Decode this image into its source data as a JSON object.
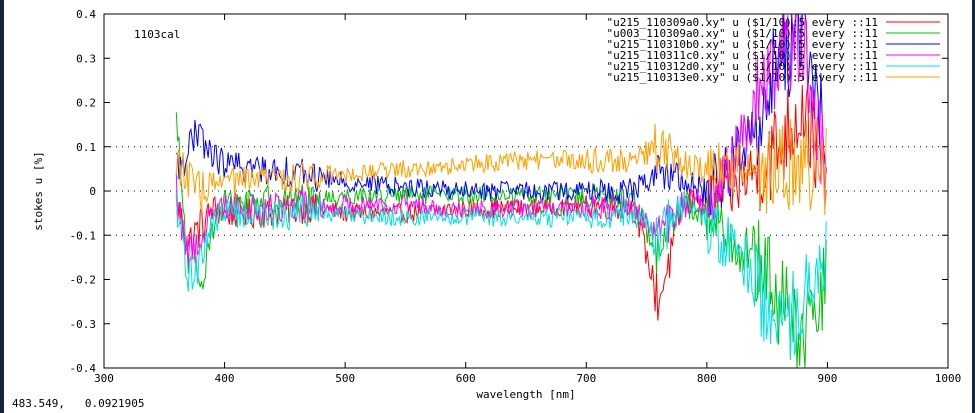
{
  "chart_data": {
    "type": "line",
    "title": "",
    "xlabel": "wavelength [nm]",
    "ylabel": "stokes u [%]",
    "xlim": [
      300,
      1000
    ],
    "ylim": [
      -0.4,
      0.4
    ],
    "x_ticks": [
      "300",
      "400",
      "500",
      "600",
      "700",
      "800",
      "900",
      "1000"
    ],
    "y_ticks": [
      "-0.4",
      "-0.3",
      "-0.2",
      "-0.1",
      "0",
      "0.1",
      "0.2",
      "0.3",
      "0.4"
    ],
    "grid": "dotted lines at y = -0.1, 0, 0.1",
    "legend_position": "top-right",
    "annotation": "1103cal",
    "series": [
      {
        "name": "\"u215_110309a0.xy\" u ($1/10):5 every ::11",
        "color": "#ff0000",
        "x": [
          360,
          370,
          380,
          390,
          400,
          420,
          440,
          460,
          480,
          500,
          550,
          600,
          650,
          700,
          740,
          760,
          780,
          800,
          820,
          840,
          860,
          880,
          900
        ],
        "y": [
          -0.03,
          -0.12,
          -0.08,
          -0.04,
          -0.05,
          -0.05,
          -0.05,
          -0.04,
          -0.04,
          -0.05,
          -0.05,
          -0.04,
          -0.04,
          -0.03,
          -0.04,
          -0.25,
          -0.03,
          -0.02,
          0.0,
          0.05,
          0.1,
          0.2,
          0.0
        ]
      },
      {
        "name": "\"u003_110309a0.xy\" u ($1/10):5 every ::11",
        "color": "#00c000",
        "x": [
          360,
          370,
          380,
          390,
          400,
          420,
          440,
          460,
          480,
          500,
          550,
          600,
          650,
          700,
          740,
          760,
          780,
          800,
          820,
          840,
          860,
          880,
          900
        ],
        "y": [
          0.15,
          -0.18,
          -0.2,
          -0.08,
          -0.03,
          -0.02,
          -0.02,
          -0.02,
          -0.02,
          -0.01,
          -0.01,
          -0.01,
          -0.01,
          -0.01,
          -0.02,
          -0.15,
          -0.03,
          -0.05,
          -0.1,
          -0.15,
          -0.25,
          -0.35,
          -0.2
        ]
      },
      {
        "name": "\"u215_110310b0.xy\" u ($1/10):5 every ::11",
        "color": "#0000ff",
        "x": [
          360,
          370,
          380,
          390,
          400,
          420,
          440,
          460,
          480,
          500,
          550,
          600,
          650,
          700,
          740,
          760,
          780,
          800,
          820,
          840,
          860,
          880,
          900
        ],
        "y": [
          0.05,
          0.1,
          0.12,
          0.08,
          0.06,
          0.05,
          0.05,
          0.04,
          0.03,
          0.02,
          0.01,
          0.0,
          0.0,
          0.0,
          0.0,
          0.05,
          0.02,
          0.0,
          0.05,
          0.15,
          0.3,
          0.35,
          0.1
        ]
      },
      {
        "name": "\"u215_110311c0.xy\" u ($1/10):5 every ::11",
        "color": "#ff00ff",
        "x": [
          360,
          370,
          380,
          390,
          400,
          420,
          440,
          460,
          480,
          500,
          550,
          600,
          650,
          700,
          740,
          760,
          780,
          800,
          820,
          840,
          860,
          880,
          900
        ],
        "y": [
          0.0,
          -0.15,
          -0.1,
          -0.05,
          -0.03,
          -0.04,
          -0.04,
          -0.03,
          -0.04,
          -0.03,
          -0.03,
          -0.04,
          -0.04,
          -0.04,
          -0.04,
          -0.1,
          -0.03,
          -0.02,
          0.05,
          0.2,
          0.3,
          0.35,
          0.0
        ]
      },
      {
        "name": "\"u215_110312d0.xy\" u ($1/10):5 every ::11",
        "color": "#00e0e0",
        "x": [
          360,
          370,
          380,
          390,
          400,
          420,
          440,
          460,
          480,
          500,
          550,
          600,
          650,
          700,
          740,
          760,
          780,
          800,
          820,
          840,
          860,
          880,
          900
        ],
        "y": [
          -0.05,
          -0.2,
          -0.15,
          -0.07,
          -0.05,
          -0.05,
          -0.06,
          -0.05,
          -0.05,
          -0.05,
          -0.06,
          -0.06,
          -0.06,
          -0.06,
          -0.05,
          -0.1,
          -0.03,
          -0.08,
          -0.12,
          -0.2,
          -0.3,
          -0.25,
          -0.1
        ]
      },
      {
        "name": "\"u215_110313e0.xy\" u ($1/10):5 every ::11",
        "color": "#ffa000",
        "x": [
          360,
          370,
          380,
          390,
          400,
          420,
          440,
          460,
          480,
          500,
          550,
          600,
          650,
          700,
          740,
          760,
          780,
          800,
          820,
          840,
          860,
          880,
          900
        ],
        "y": [
          0.08,
          0.02,
          0.0,
          0.01,
          0.02,
          0.02,
          0.03,
          0.03,
          0.04,
          0.04,
          0.05,
          0.06,
          0.07,
          0.07,
          0.07,
          0.1,
          0.06,
          0.05,
          0.05,
          0.05,
          0.05,
          0.06,
          0.05
        ]
      }
    ]
  },
  "status": {
    "x": "483.549,",
    "y": "0.0921905"
  }
}
